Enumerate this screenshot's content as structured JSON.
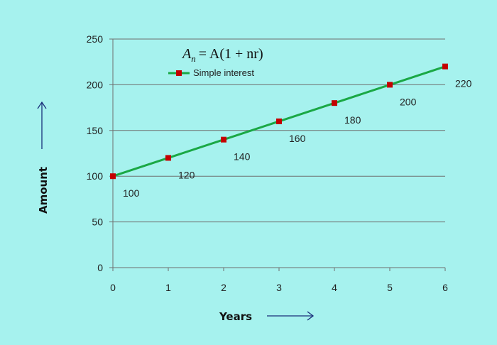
{
  "colors": {
    "background": "#a6f2ee",
    "line": "#1aa845",
    "marker": "#c40000",
    "grid": "#6f6f6f",
    "arrow": "#1a2f7a"
  },
  "formula": {
    "lhs": "A",
    "lhs_sub": "n",
    "rhs": "= A(1 + nr)"
  },
  "chart_data": {
    "type": "line",
    "x": [
      0,
      1,
      2,
      3,
      4,
      5,
      6
    ],
    "xlim": [
      0,
      6
    ],
    "ylim": [
      0,
      250
    ],
    "yticks": [
      0,
      50,
      100,
      150,
      200,
      250
    ],
    "xticks": [
      0,
      1,
      2,
      3,
      4,
      5,
      6
    ],
    "xlabel": "Years",
    "ylabel": "Amount",
    "grid": "horizontal",
    "legend_position": "top-left",
    "series": [
      {
        "name": "Simple interest",
        "values": [
          100,
          120,
          140,
          160,
          180,
          200,
          220
        ],
        "marker": "square"
      }
    ]
  }
}
